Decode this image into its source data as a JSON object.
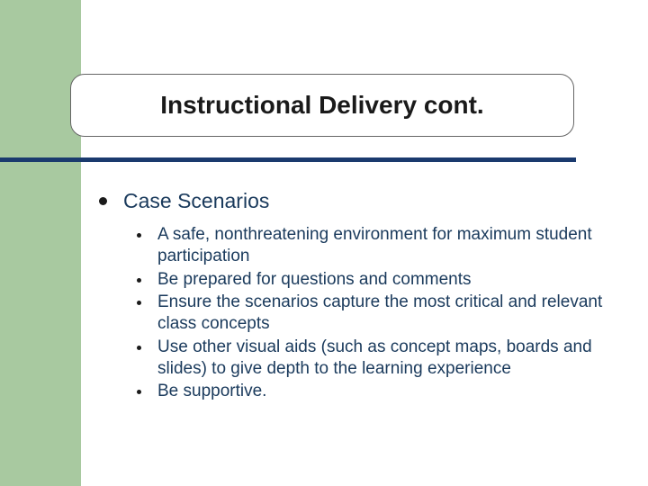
{
  "slide": {
    "title": "Instructional Delivery cont.",
    "main_bullet": "Case Scenarios",
    "sub_bullets": [
      "A safe, nonthreatening environment for maximum student participation",
      "Be prepared for questions and comments",
      "Ensure the scenarios capture the most critical and relevant class concepts",
      "Use other visual aids (such as concept maps, boards and slides) to give depth to the learning experience",
      "Be supportive."
    ]
  },
  "style": {
    "sidebar_color": "#a8c9a0",
    "underline_color": "#1a3a6e",
    "text_color": "#1a3a5c",
    "title_color": "#1a1a1a",
    "background": "#ffffff",
    "title_fontsize": 28,
    "main_bullet_fontsize": 23,
    "sub_bullet_fontsize": 19
  }
}
